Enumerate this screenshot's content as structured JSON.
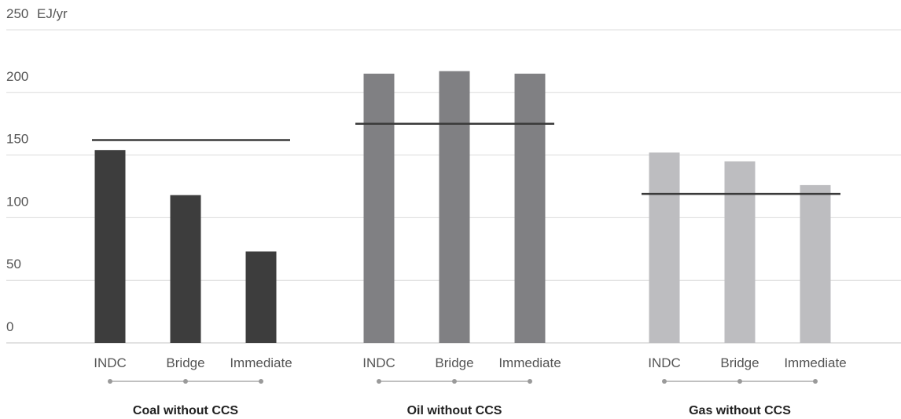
{
  "chart_data": {
    "type": "bar",
    "y_unit": "EJ/yr",
    "ylim": [
      0,
      250
    ],
    "y_ticks": [
      0,
      50,
      100,
      150,
      200,
      250
    ],
    "grid": true,
    "groups": [
      {
        "name": "Coal without CCS",
        "color": "#3d3d3d",
        "categories": [
          "INDC",
          "Bridge",
          "Immediate"
        ],
        "values": [
          154,
          118,
          73
        ],
        "reference_line": 162
      },
      {
        "name": "Oil without CCS",
        "color": "#808083",
        "categories": [
          "INDC",
          "Bridge",
          "Immediate"
        ],
        "values": [
          215,
          217,
          215
        ],
        "reference_line": 175
      },
      {
        "name": "Gas without CCS",
        "color": "#bdbdc0",
        "categories": [
          "INDC",
          "Bridge",
          "Immediate"
        ],
        "values": [
          152,
          145,
          126
        ],
        "reference_line": 119
      }
    ]
  }
}
